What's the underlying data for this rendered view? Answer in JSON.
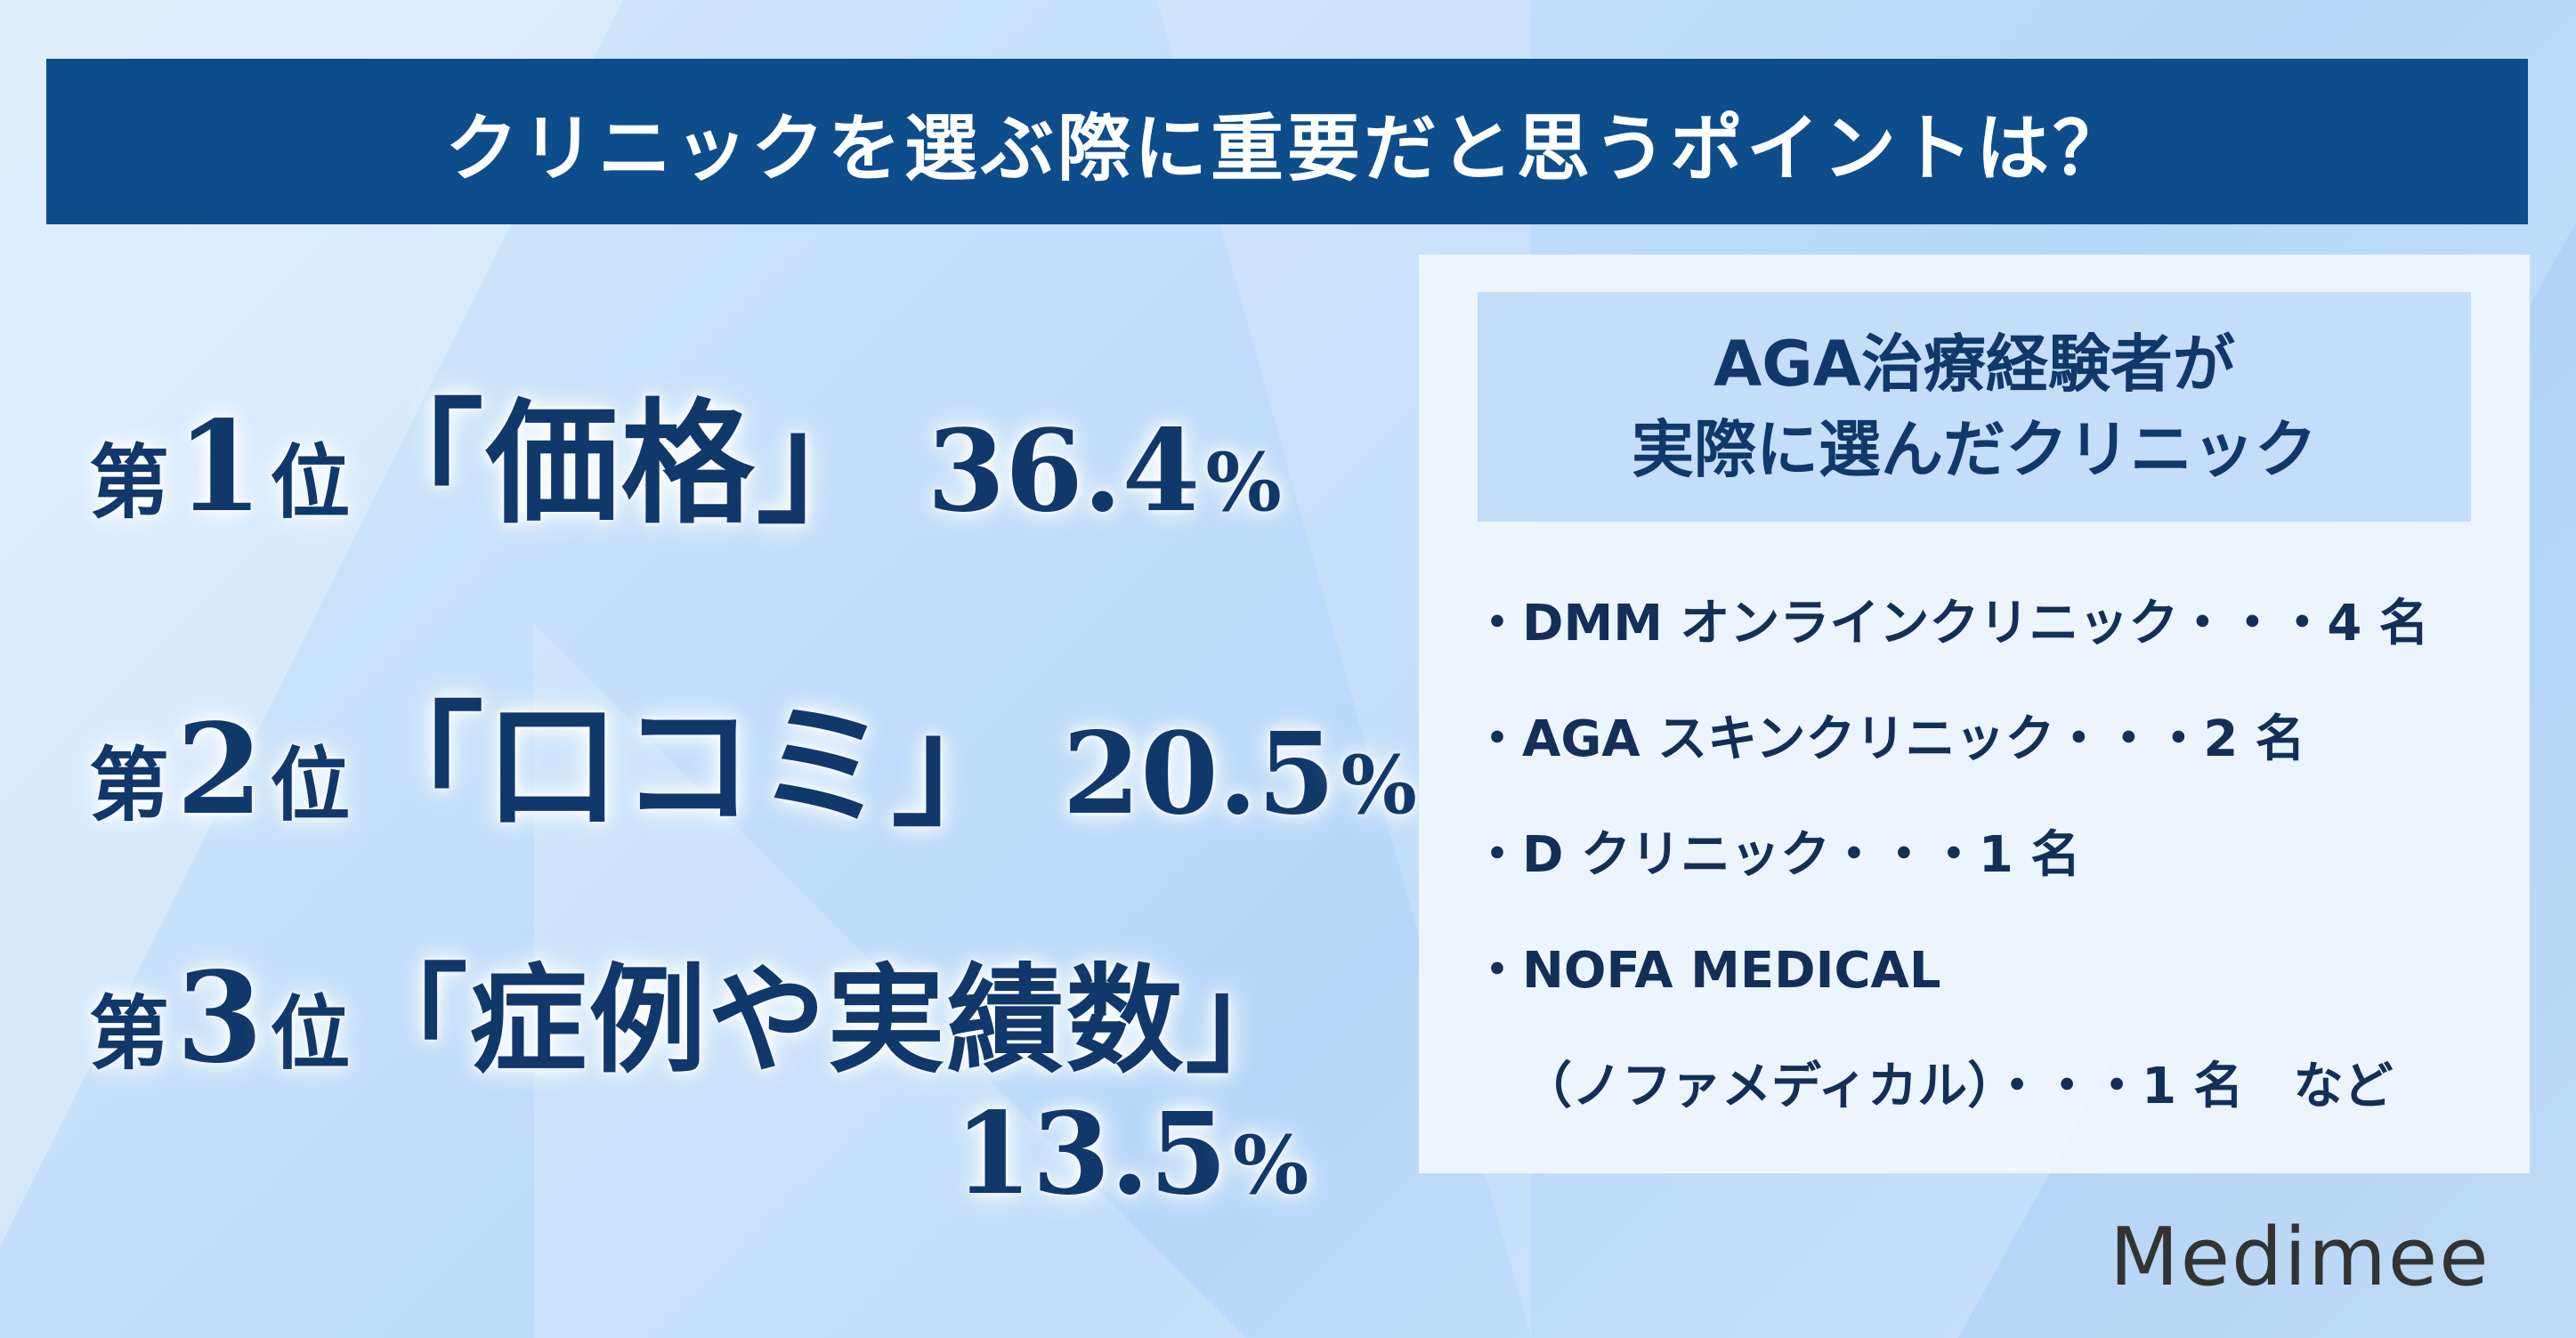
{
  "banner": {
    "title": "クリニックを選ぶ際に重要だと思うポイントは？"
  },
  "ranking": [
    {
      "prefix": "第",
      "rank": "1",
      "suffix": "位",
      "term": "「価格」",
      "percent": "36.4",
      "unit": "%"
    },
    {
      "prefix": "第",
      "rank": "2",
      "suffix": "位",
      "term": "「口コミ」",
      "percent": "20.5",
      "unit": "%"
    },
    {
      "prefix": "第",
      "rank": "3",
      "suffix": "位",
      "term": "「症例や実績数」",
      "percent": "13.5",
      "unit": "%"
    }
  ],
  "panel": {
    "header_line1": "AGA治療経験者が",
    "header_line2": "実際に選んだクリニック",
    "items": [
      "・DMM オンラインクリニック・・・4 名",
      "・AGA スキンクリニック・・・2 名",
      "・D クリニック・・・1 名",
      "・NOFA MEDICAL",
      "（ノファメディカル）・・・1 名　など"
    ]
  },
  "brand": {
    "name": "Medimee"
  },
  "colors": {
    "banner": "#0e4d8c",
    "text_dark": "#11386b",
    "panel_header": "#c4ddf8"
  }
}
